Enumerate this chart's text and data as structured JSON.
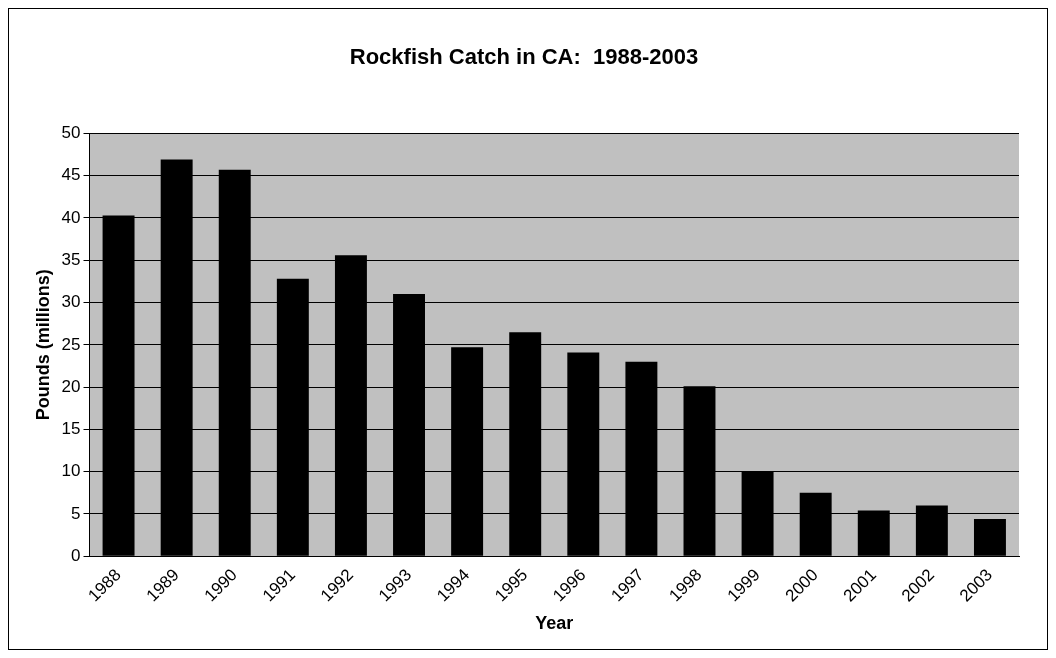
{
  "chart_data": {
    "type": "bar",
    "title": "Rockfish Catch in CA:  1988-2003",
    "xlabel": "Year",
    "ylabel": "Pounds (millions)",
    "categories": [
      "1988",
      "1989",
      "1990",
      "1991",
      "1992",
      "1993",
      "1994",
      "1995",
      "1996",
      "1997",
      "1998",
      "1999",
      "2000",
      "2001",
      "2002",
      "2003"
    ],
    "values": [
      40.3,
      46.9,
      45.7,
      32.8,
      35.6,
      31.0,
      24.7,
      26.5,
      24.1,
      23.0,
      20.1,
      10.0,
      7.5,
      5.4,
      6.0,
      4.4
    ],
    "color": "#000000",
    "ylim": [
      0,
      50
    ],
    "yticks": [
      0,
      5,
      10,
      15,
      20,
      25,
      30,
      35,
      40,
      45,
      50
    ],
    "grid": "y",
    "legend": false
  }
}
